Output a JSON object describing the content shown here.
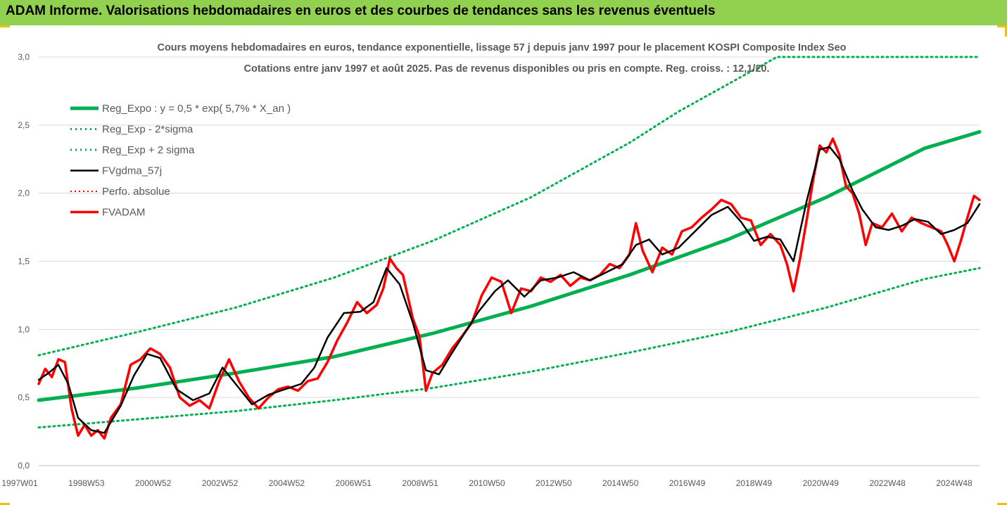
{
  "header": {
    "title": "ADAM Informe. Valorisations hebdomadaires en euros et des courbes de tendances sans les revenus éventuels"
  },
  "colors": {
    "banner": "#92d050",
    "frame": "#f0c000",
    "trend": "#00b050",
    "smoothed": "#000000",
    "price": "#ff0000",
    "grid": "#d9d9d9",
    "text": "#595959"
  },
  "chart_data": {
    "type": "line",
    "title": "Cours moyens hebdomadaires en euros, tendance exponentielle, lissage 57 j depuis janv 1997 pour le placement KOSPI Composite Index Seo",
    "subtitle": "Cotations entre janv 1997 et août 2025. Pas de revenus disponibles ou pris en compte. Reg. croiss. : 12,1/20.",
    "ylim": [
      0,
      3
    ],
    "y_ticks": [
      "0,0",
      "0,5",
      "1,0",
      "1,5",
      "2,0",
      "2,5",
      "3,0"
    ],
    "x_ticks": [
      "1997W01",
      "1998W53",
      "2000W52",
      "2002W52",
      "2004W52",
      "2006W51",
      "2008W51",
      "2010W50",
      "2012W50",
      "2014W50",
      "2016W49",
      "2018W49",
      "2020W49",
      "2022W48",
      "2024W48"
    ],
    "grid": "horizontal",
    "legend_position": "top-left",
    "legend": [
      "Reg_Expo : y = 0,5 * exp( 5,7% * X_an )",
      "Reg_Exp - 2*sigma",
      "Reg_Exp + 2 sigma",
      "FVgdma_57j",
      "Perfo. absolue",
      "FVADAM"
    ],
    "series": [
      {
        "name": "Reg_Expo : y = 0,5 * exp( 5,7% * X_an )",
        "x": [
          1997.0,
          2000.0,
          2003.0,
          2006.0,
          2009.0,
          2012.0,
          2015.0,
          2018.0,
          2021.0,
          2024.0,
          2025.67
        ],
        "values": [
          0.48,
          0.57,
          0.68,
          0.8,
          0.97,
          1.17,
          1.4,
          1.66,
          1.97,
          2.33,
          2.45
        ]
      },
      {
        "name": "Reg_Exp - 2*sigma",
        "x": [
          1997.0,
          2000.0,
          2003.0,
          2006.0,
          2009.0,
          2012.0,
          2015.0,
          2018.0,
          2021.0,
          2024.0,
          2025.67
        ],
        "values": [
          0.28,
          0.34,
          0.4,
          0.48,
          0.57,
          0.69,
          0.83,
          0.98,
          1.16,
          1.37,
          1.45
        ]
      },
      {
        "name": "Reg_Exp + 2 sigma",
        "x": [
          1997.0,
          2000.0,
          2003.0,
          2006.0,
          2009.0,
          2012.0,
          2013.5,
          2015.0,
          2016.5,
          2019.5,
          2020.3,
          2025.67
        ],
        "values": [
          0.81,
          0.98,
          1.16,
          1.38,
          1.65,
          1.97,
          2.17,
          2.37,
          2.6,
          3.0,
          3.0,
          3.0
        ]
      },
      {
        "name": "FVgdma_57j",
        "x": [
          1997.0,
          1997.3,
          1997.6,
          1997.9,
          1998.2,
          1998.6,
          1999.0,
          1999.5,
          1999.9,
          2000.3,
          2000.7,
          2001.2,
          2001.7,
          2002.2,
          2002.6,
          2003.1,
          2003.5,
          2004.0,
          2004.5,
          2005.0,
          2005.4,
          2005.8,
          2006.3,
          2006.8,
          2007.2,
          2007.6,
          2008.0,
          2008.4,
          2008.8,
          2009.2,
          2009.6,
          2010.0,
          2010.4,
          2010.9,
          2011.3,
          2011.8,
          2012.3,
          2012.8,
          2013.3,
          2013.8,
          2014.3,
          2014.8,
          2015.2,
          2015.6,
          2016.0,
          2016.5,
          2017.0,
          2017.5,
          2018.0,
          2018.4,
          2018.8,
          2019.2,
          2019.6,
          2020.0,
          2020.4,
          2020.8,
          2021.1,
          2021.4,
          2021.8,
          2022.1,
          2022.5,
          2022.9,
          2023.3,
          2023.7,
          2024.1,
          2024.5,
          2024.9,
          2025.3,
          2025.67
        ],
        "values": [
          0.63,
          0.68,
          0.74,
          0.6,
          0.35,
          0.26,
          0.24,
          0.44,
          0.66,
          0.82,
          0.79,
          0.56,
          0.48,
          0.53,
          0.72,
          0.57,
          0.45,
          0.52,
          0.56,
          0.6,
          0.72,
          0.94,
          1.12,
          1.13,
          1.2,
          1.45,
          1.33,
          1.05,
          0.7,
          0.67,
          0.83,
          0.98,
          1.13,
          1.28,
          1.36,
          1.24,
          1.36,
          1.38,
          1.42,
          1.36,
          1.42,
          1.48,
          1.62,
          1.66,
          1.55,
          1.6,
          1.72,
          1.84,
          1.9,
          1.79,
          1.65,
          1.68,
          1.66,
          1.5,
          1.94,
          2.32,
          2.34,
          2.25,
          2.02,
          1.88,
          1.75,
          1.73,
          1.76,
          1.81,
          1.79,
          1.7,
          1.73,
          1.78,
          1.92
        ]
      },
      {
        "name": "Perfo. absolue",
        "x": [],
        "values": []
      },
      {
        "name": "FVADAM",
        "x": [
          1997.0,
          1997.2,
          1997.4,
          1997.6,
          1997.8,
          1998.0,
          1998.2,
          1998.4,
          1998.6,
          1998.8,
          1999.0,
          1999.2,
          1999.5,
          1999.8,
          2000.1,
          2000.4,
          2000.7,
          2001.0,
          2001.3,
          2001.6,
          2001.9,
          2002.2,
          2002.5,
          2002.8,
          2003.1,
          2003.4,
          2003.7,
          2004.0,
          2004.3,
          2004.6,
          2004.9,
          2005.2,
          2005.5,
          2005.8,
          2006.1,
          2006.4,
          2006.7,
          2007.0,
          2007.3,
          2007.5,
          2007.7,
          2007.9,
          2008.1,
          2008.4,
          2008.6,
          2008.8,
          2009.0,
          2009.3,
          2009.6,
          2009.9,
          2010.2,
          2010.5,
          2010.8,
          2011.1,
          2011.4,
          2011.7,
          2012.0,
          2012.3,
          2012.6,
          2012.9,
          2013.2,
          2013.5,
          2013.8,
          2014.1,
          2014.4,
          2014.7,
          2015.0,
          2015.2,
          2015.4,
          2015.7,
          2016.0,
          2016.3,
          2016.6,
          2016.9,
          2017.2,
          2017.5,
          2017.8,
          2018.1,
          2018.4,
          2018.7,
          2019.0,
          2019.3,
          2019.6,
          2019.8,
          2020.0,
          2020.2,
          2020.4,
          2020.6,
          2020.8,
          2021.0,
          2021.2,
          2021.4,
          2021.6,
          2021.8,
          2022.0,
          2022.2,
          2022.4,
          2022.7,
          2023.0,
          2023.3,
          2023.6,
          2023.9,
          2024.2,
          2024.5,
          2024.7,
          2024.9,
          2025.1,
          2025.3,
          2025.5,
          2025.67
        ],
        "values": [
          0.6,
          0.71,
          0.65,
          0.78,
          0.76,
          0.42,
          0.22,
          0.3,
          0.22,
          0.26,
          0.2,
          0.35,
          0.45,
          0.74,
          0.78,
          0.86,
          0.82,
          0.72,
          0.5,
          0.44,
          0.48,
          0.42,
          0.62,
          0.78,
          0.62,
          0.5,
          0.42,
          0.5,
          0.56,
          0.58,
          0.55,
          0.62,
          0.64,
          0.76,
          0.92,
          1.05,
          1.2,
          1.12,
          1.18,
          1.3,
          1.52,
          1.45,
          1.4,
          1.08,
          0.95,
          0.55,
          0.68,
          0.74,
          0.86,
          0.95,
          1.05,
          1.25,
          1.38,
          1.35,
          1.12,
          1.3,
          1.28,
          1.38,
          1.35,
          1.4,
          1.32,
          1.38,
          1.36,
          1.4,
          1.48,
          1.45,
          1.55,
          1.78,
          1.58,
          1.42,
          1.6,
          1.55,
          1.72,
          1.75,
          1.82,
          1.88,
          1.95,
          1.92,
          1.82,
          1.8,
          1.62,
          1.7,
          1.62,
          1.48,
          1.28,
          1.52,
          1.8,
          2.1,
          2.35,
          2.3,
          2.4,
          2.28,
          2.05,
          2.0,
          1.85,
          1.62,
          1.78,
          1.75,
          1.85,
          1.72,
          1.82,
          1.78,
          1.75,
          1.72,
          1.62,
          1.5,
          1.65,
          1.82,
          1.98,
          1.95
        ]
      }
    ]
  }
}
